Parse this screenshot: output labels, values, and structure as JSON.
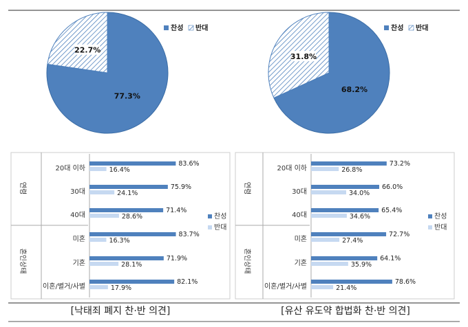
{
  "colors": {
    "agree": "#4f81bd",
    "disagree_hatch": "#4f81bd",
    "disagree_bar": "#c6d9f1",
    "line": "#555555"
  },
  "chart_data": [
    {
      "type": "pie",
      "id": "left-pie",
      "legend_position": "top-right",
      "legend": [
        "찬성",
        "반대"
      ],
      "slices": [
        {
          "label": "찬성",
          "value": 77.3,
          "text": "77.3%"
        },
        {
          "label": "반대",
          "value": 22.7,
          "text": "22.7%"
        }
      ]
    },
    {
      "type": "pie",
      "id": "right-pie",
      "legend_position": "top-right",
      "legend": [
        "찬성",
        "반대"
      ],
      "slices": [
        {
          "label": "찬성",
          "value": 68.2,
          "text": "68.2%"
        },
        {
          "label": "반대",
          "value": 31.8,
          "text": "31.8%"
        }
      ]
    },
    {
      "type": "bar",
      "id": "left-bars",
      "orientation": "horizontal",
      "groups": [
        "연령",
        "혼인상태"
      ],
      "categories": [
        "20대 이하",
        "30대",
        "40대",
        "미혼",
        "기혼",
        "이혼/별거/사별"
      ],
      "category_groups": [
        0,
        0,
        0,
        1,
        1,
        1
      ],
      "legend_position": "right",
      "series": [
        {
          "name": "찬성",
          "values": [
            83.6,
            75.9,
            71.4,
            83.7,
            71.9,
            82.1
          ],
          "labels": [
            "83.6%",
            "75.9%",
            "71.4%",
            "83.7%",
            "71.9%",
            "82.1%"
          ]
        },
        {
          "name": "반대",
          "values": [
            16.4,
            24.1,
            28.6,
            16.3,
            28.1,
            17.9
          ],
          "labels": [
            "16.4%",
            "24.1%",
            "28.6%",
            "16.3%",
            "28.1%",
            "17.9%"
          ]
        }
      ],
      "xlim": [
        0,
        100
      ]
    },
    {
      "type": "bar",
      "id": "right-bars",
      "orientation": "horizontal",
      "groups": [
        "연령",
        "혼인상태"
      ],
      "categories": [
        "20대 이하",
        "30대",
        "40대",
        "미혼",
        "기혼",
        "이혼/별거/사별"
      ],
      "category_groups": [
        0,
        0,
        0,
        1,
        1,
        1
      ],
      "legend_position": "right",
      "series": [
        {
          "name": "찬성",
          "values": [
            73.2,
            66.0,
            65.4,
            72.7,
            64.1,
            78.6
          ],
          "labels": [
            "73.2%",
            "66.0%",
            "65.4%",
            "72.7%",
            "64.1%",
            "78.6%"
          ]
        },
        {
          "name": "반대",
          "values": [
            26.8,
            34.0,
            34.6,
            27.4,
            35.9,
            21.4
          ],
          "labels": [
            "26.8%",
            "34.0%",
            "34.6%",
            "27.4%",
            "35.9%",
            "21.4%"
          ]
        }
      ],
      "xlim": [
        0,
        100
      ]
    }
  ],
  "captions": [
    "[낙태죄 폐지 찬·반 의견]",
    "[유산 유도약 합법화 찬·반 의견]"
  ]
}
